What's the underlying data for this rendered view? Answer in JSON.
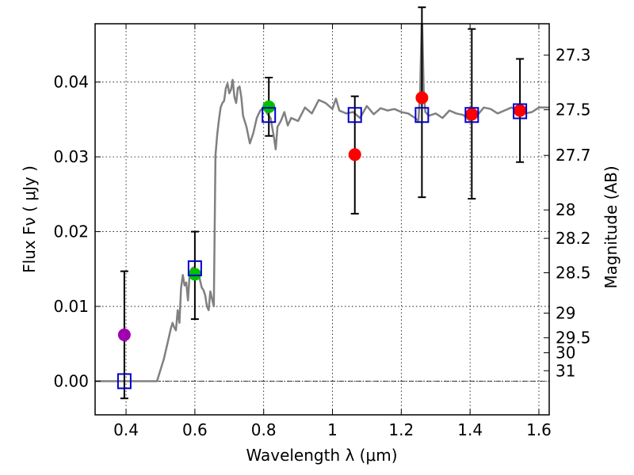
{
  "chart_data": {
    "type": "scatter",
    "xlabel": "Wavelength  λ (μm)",
    "ylabel": "Flux  Fν  ( μJy )",
    "y2label": "Magnitude (AB)",
    "xlim": [
      0.31,
      1.63
    ],
    "ylim": [
      -0.0045,
      0.0478
    ],
    "grid": true,
    "x_ticks": [
      0.4,
      0.6,
      0.8,
      1.0,
      1.2,
      1.4,
      1.6
    ],
    "x_tick_labels": [
      "0.4",
      "0.6",
      "0.8",
      "1",
      "1.2",
      "1.4",
      "1.6"
    ],
    "y_ticks": [
      0.0,
      0.01,
      0.02,
      0.03,
      0.04
    ],
    "y_tick_labels": [
      "0.00",
      "0.01",
      "0.02",
      "0.03",
      "0.04"
    ],
    "mag_ticks": [
      {
        "label": "27.3",
        "flux": 0.0436
      },
      {
        "label": "27.5",
        "flux": 0.0363
      },
      {
        "label": "27.7",
        "flux": 0.0302
      },
      {
        "label": "28",
        "flux": 0.0229
      },
      {
        "label": "28.2",
        "flux": 0.0191
      },
      {
        "label": "28.5",
        "flux": 0.0145
      },
      {
        "label": "29",
        "flux": 0.0091
      },
      {
        "label": "29.5",
        "flux": 0.0058
      },
      {
        "label": "30",
        "flux": 0.0038
      },
      {
        "label": "31",
        "flux": 0.0014
      }
    ],
    "colors": {
      "model": "#808080",
      "magenta": "#a000b0",
      "green": "#00c000",
      "red": "#ff0000",
      "box": "#0000cc",
      "errorbar": "#000000"
    },
    "model_spectrum": {
      "name": "model",
      "x": [
        0.31,
        0.49,
        0.51,
        0.52,
        0.53,
        0.535,
        0.54,
        0.545,
        0.55,
        0.555,
        0.56,
        0.565,
        0.57,
        0.575,
        0.58,
        0.585,
        0.59,
        0.595,
        0.6,
        0.605,
        0.61,
        0.615,
        0.62,
        0.625,
        0.63,
        0.635,
        0.64,
        0.645,
        0.65,
        0.655,
        0.66,
        0.665,
        0.67,
        0.675,
        0.68,
        0.685,
        0.69,
        0.695,
        0.7,
        0.705,
        0.71,
        0.715,
        0.72,
        0.725,
        0.73,
        0.735,
        0.74,
        0.75,
        0.76,
        0.77,
        0.78,
        0.79,
        0.8,
        0.81,
        0.82,
        0.83,
        0.835,
        0.84,
        0.85,
        0.86,
        0.87,
        0.88,
        0.9,
        0.92,
        0.94,
        0.96,
        0.98,
        1.0,
        1.01,
        1.02,
        1.04,
        1.06,
        1.08,
        1.1,
        1.12,
        1.14,
        1.16,
        1.18,
        1.2,
        1.22,
        1.24,
        1.25,
        1.255,
        1.26,
        1.265,
        1.27,
        1.28,
        1.3,
        1.32,
        1.34,
        1.36,
        1.38,
        1.4,
        1.42,
        1.44,
        1.46,
        1.48,
        1.5,
        1.52,
        1.54,
        1.56,
        1.58,
        1.6,
        1.63
      ],
      "y": [
        0.0,
        0.0,
        0.003,
        0.005,
        0.007,
        0.0078,
        0.0072,
        0.0068,
        0.0095,
        0.0078,
        0.0125,
        0.0142,
        0.0128,
        0.0132,
        0.0108,
        0.0145,
        0.015,
        0.0152,
        0.0145,
        0.0146,
        0.0148,
        0.0135,
        0.0125,
        0.0122,
        0.0115,
        0.01,
        0.0095,
        0.012,
        0.011,
        0.01,
        0.0302,
        0.033,
        0.035,
        0.0366,
        0.0372,
        0.0375,
        0.0392,
        0.0398,
        0.0385,
        0.039,
        0.0403,
        0.038,
        0.0372,
        0.0392,
        0.0394,
        0.038,
        0.0355,
        0.034,
        0.0318,
        0.0332,
        0.0352,
        0.0362,
        0.0366,
        0.0358,
        0.0352,
        0.0326,
        0.031,
        0.034,
        0.0348,
        0.036,
        0.0342,
        0.0352,
        0.0348,
        0.0366,
        0.0358,
        0.0376,
        0.0372,
        0.0364,
        0.0378,
        0.0362,
        0.0358,
        0.036,
        0.0352,
        0.0368,
        0.0357,
        0.0365,
        0.0362,
        0.0364,
        0.036,
        0.0358,
        0.0352,
        0.0348,
        0.039,
        0.0495,
        0.039,
        0.036,
        0.0355,
        0.0358,
        0.0352,
        0.0362,
        0.0358,
        0.0356,
        0.0348,
        0.0355,
        0.0366,
        0.0364,
        0.0358,
        0.0362,
        0.0366,
        0.0362,
        0.0358,
        0.036,
        0.0366,
        0.0366
      ]
    },
    "observations": [
      {
        "x": 0.395,
        "y": 0.0062,
        "err_low": 0.0085,
        "err_high": 0.0085,
        "color": "magenta"
      },
      {
        "x": 0.6,
        "y": 0.0143,
        "err_low": 0.006,
        "err_high": 0.0057,
        "color": "green"
      },
      {
        "x": 0.815,
        "y": 0.0367,
        "err_low": 0.0039,
        "err_high": 0.0039,
        "color": "green"
      },
      {
        "x": 1.065,
        "y": 0.0303,
        "err_low": 0.0079,
        "err_high": 0.0078,
        "color": "red"
      },
      {
        "x": 1.26,
        "y": 0.0379,
        "err_low": 0.0133,
        "err_high": 0.0121,
        "color": "red"
      },
      {
        "x": 1.405,
        "y": 0.0357,
        "err_low": 0.0113,
        "err_high": 0.0114,
        "color": "red"
      },
      {
        "x": 1.545,
        "y": 0.0362,
        "err_low": 0.0069,
        "err_high": 0.0069,
        "color": "red"
      }
    ],
    "model_boxes": [
      {
        "x": 0.395,
        "y": 0.0
      },
      {
        "x": 0.6,
        "y": 0.0151
      },
      {
        "x": 0.815,
        "y": 0.0356
      },
      {
        "x": 1.065,
        "y": 0.0356
      },
      {
        "x": 1.26,
        "y": 0.0356
      },
      {
        "x": 1.405,
        "y": 0.0356
      },
      {
        "x": 1.545,
        "y": 0.0361
      }
    ]
  }
}
